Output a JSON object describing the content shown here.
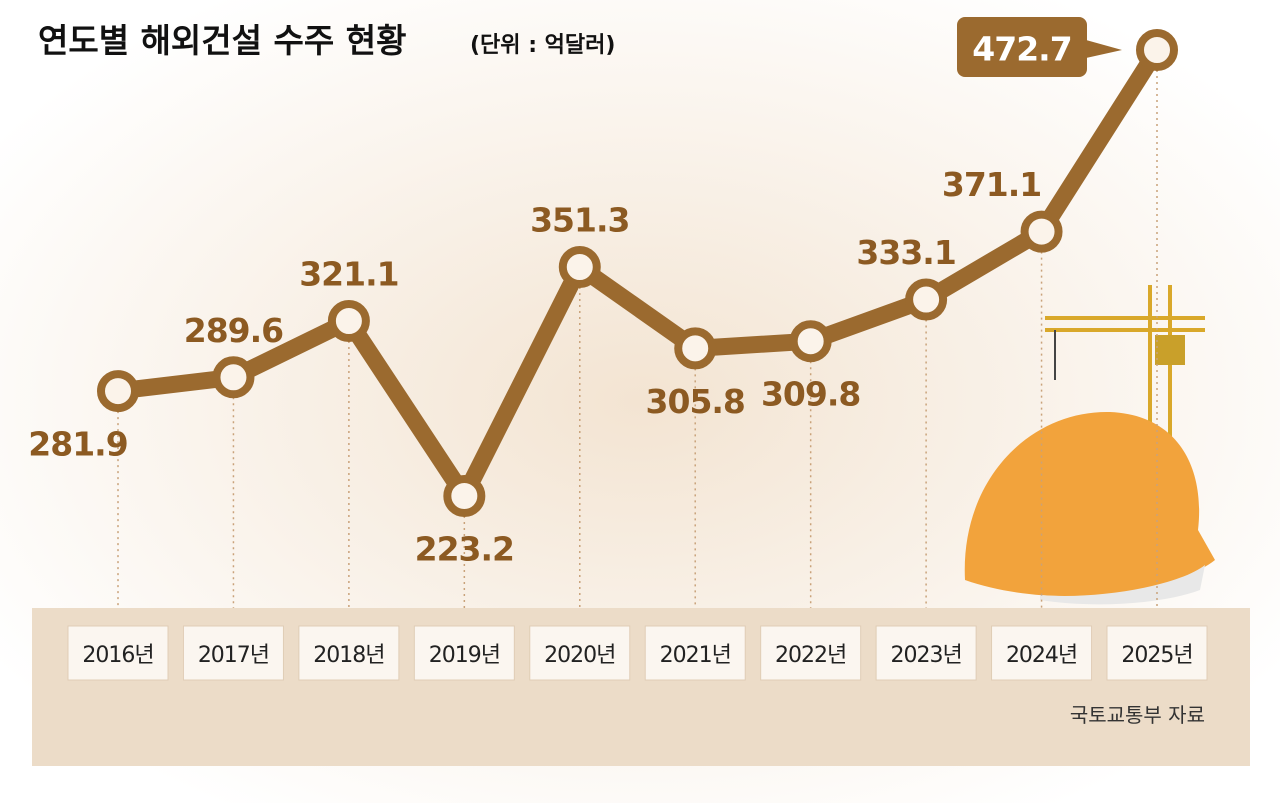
{
  "chart_data": {
    "type": "line",
    "title": "연도별 해외건설 수주 현황",
    "subtitle": "(단위 : 억달러)",
    "source": "국토교통부 자료",
    "categories": [
      "2016년",
      "2017년",
      "2018년",
      "2019년",
      "2020년",
      "2021년",
      "2022년",
      "2023년",
      "2024년",
      "2025년"
    ],
    "values": [
      281.9,
      289.6,
      321.1,
      223.2,
      351.3,
      305.8,
      309.8,
      333.1,
      371.1,
      472.7
    ],
    "color": "#9b6a2f"
  }
}
